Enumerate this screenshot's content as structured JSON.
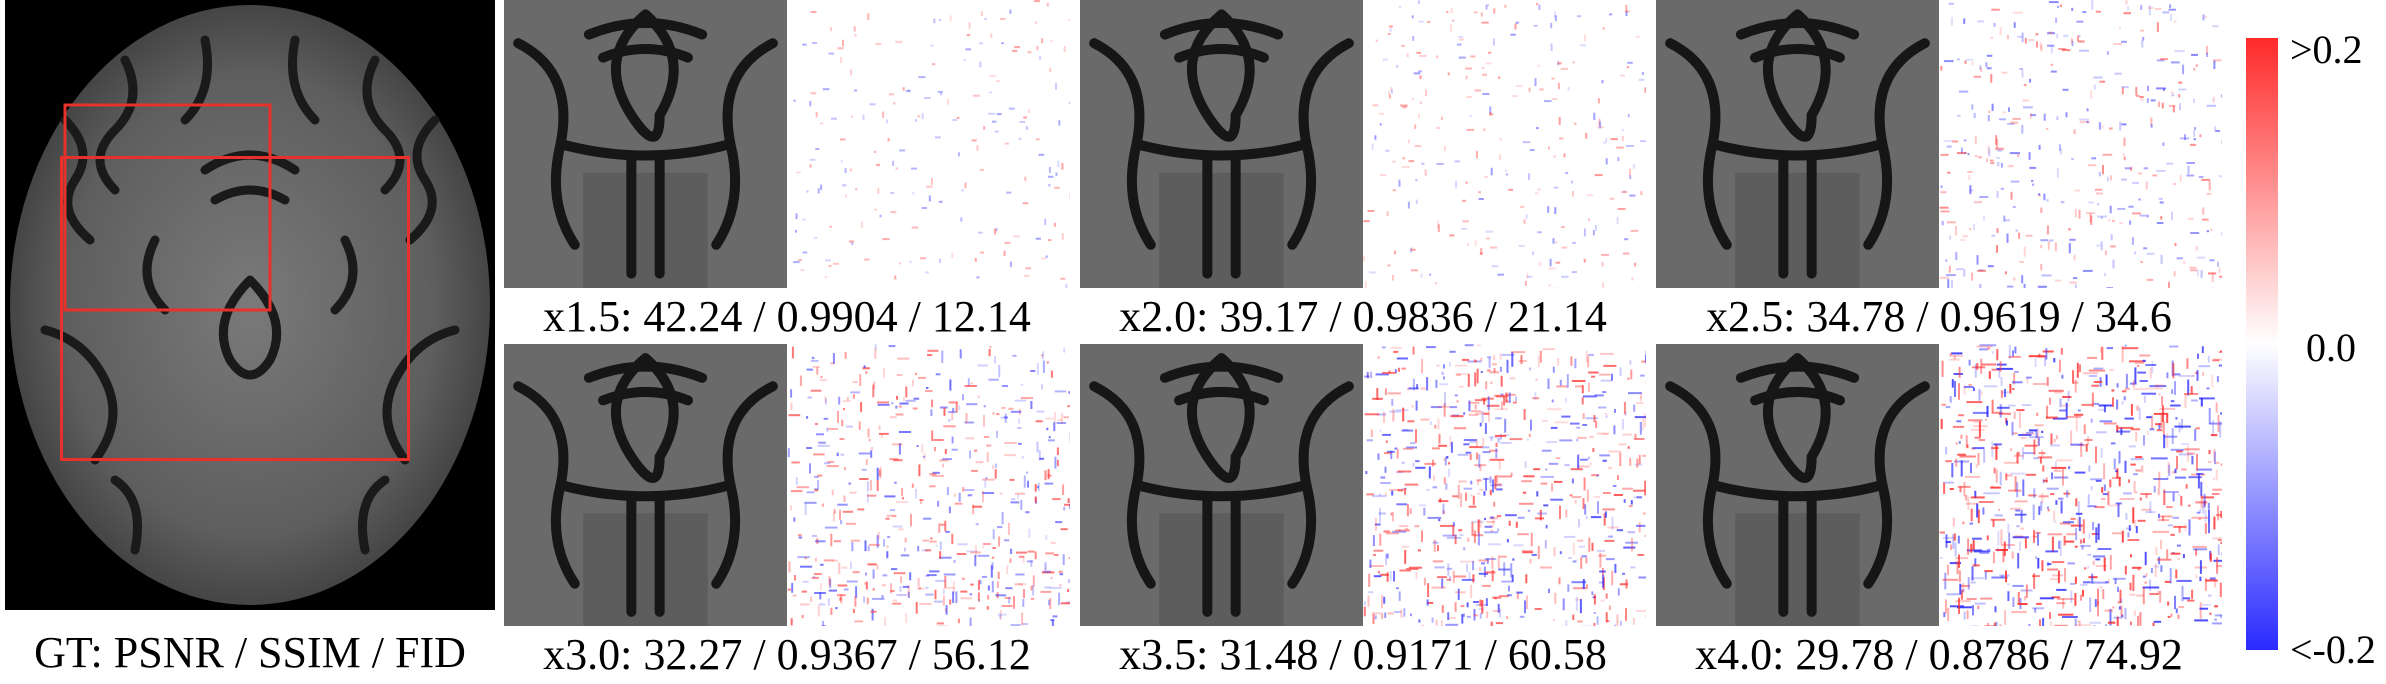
{
  "figure": {
    "gt_caption": "GT: PSNR / SSIM / FID",
    "panels": [
      {
        "scale": "x1.5",
        "caption": "x1.5: 42.24 / 0.9904 / 12.14",
        "psnr": 42.24,
        "ssim": 0.9904,
        "fid": 12.14,
        "error_level": 0.08
      },
      {
        "scale": "x2.0",
        "caption": "x2.0: 39.17 / 0.9836 / 21.14",
        "psnr": 39.17,
        "ssim": 0.9836,
        "fid": 21.14,
        "error_level": 0.15
      },
      {
        "scale": "x2.5",
        "caption": "x2.5: 34.78 / 0.9619 / 34.6",
        "psnr": 34.78,
        "ssim": 0.9619,
        "fid": 34.6,
        "error_level": 0.3
      },
      {
        "scale": "x3.0",
        "caption": "x3.0: 32.27 / 0.9367 / 56.12",
        "psnr": 32.27,
        "ssim": 0.9367,
        "fid": 56.12,
        "error_level": 0.48
      },
      {
        "scale": "x3.5",
        "caption": "x3.5: 31.48 / 0.9171 / 60.58",
        "psnr": 31.48,
        "ssim": 0.9171,
        "fid": 60.58,
        "error_level": 0.62
      },
      {
        "scale": "x4.0",
        "caption": "x4.0: 29.78 / 0.8786 / 74.92",
        "psnr": 29.78,
        "ssim": 0.8786,
        "fid": 74.92,
        "error_level": 0.78
      }
    ],
    "colorbar": {
      "max_label": ">0.2",
      "mid_label": "0.0",
      "min_label": "<-0.2",
      "max_color": "#ff2a2a",
      "mid_color": "#ffffff",
      "min_color": "#2a2aff"
    },
    "roi_box_color": "#e8312a"
  }
}
